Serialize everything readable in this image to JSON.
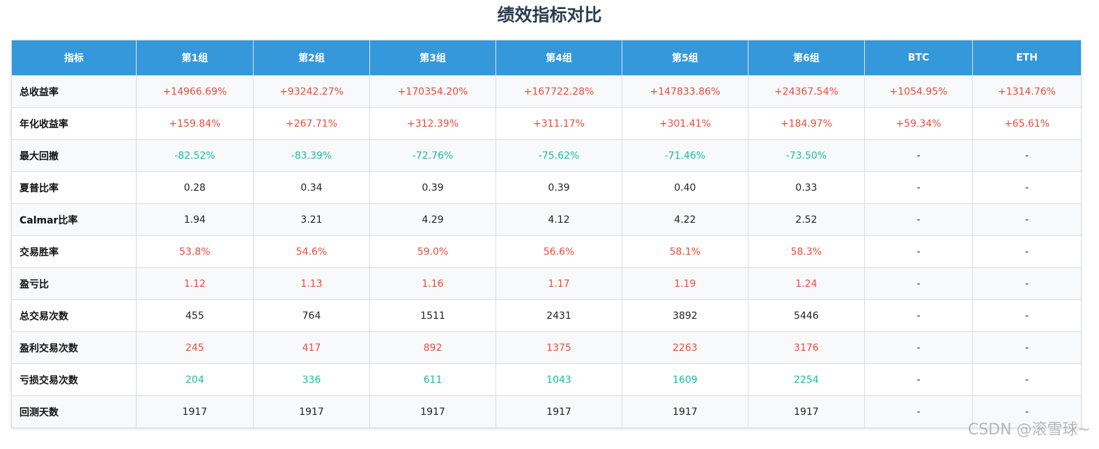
{
  "title": "绩效指标对比",
  "watermark": "CSDN @滚雪球~",
  "colors": {
    "header_bg": "#3498db",
    "positive": "#e74c3c",
    "negative": "#1abc9c",
    "neutral": "#222222"
  },
  "table": {
    "headers": [
      "指标",
      "第1组",
      "第2组",
      "第3组",
      "第4组",
      "第5组",
      "第6组",
      "BTC",
      "ETH"
    ],
    "rows": [
      {
        "metric": "总收益率",
        "style": "pos",
        "values": [
          "+14966.69%",
          "+93242.27%",
          "+170354.20%",
          "+167722.28%",
          "+147833.86%",
          "+24367.54%",
          "+1054.95%",
          "+1314.76%"
        ]
      },
      {
        "metric": "年化收益率",
        "style": "pos",
        "values": [
          "+159.84%",
          "+267.71%",
          "+312.39%",
          "+311.17%",
          "+301.41%",
          "+184.97%",
          "+59.34%",
          "+65.61%"
        ]
      },
      {
        "metric": "最大回撤",
        "style": "neg",
        "values": [
          "-82.52%",
          "-83.39%",
          "-72.76%",
          "-75.62%",
          "-71.46%",
          "-73.50%",
          "-",
          "-"
        ]
      },
      {
        "metric": "夏普比率",
        "style": "neu",
        "values": [
          "0.28",
          "0.34",
          "0.39",
          "0.39",
          "0.40",
          "0.33",
          "-",
          "-"
        ]
      },
      {
        "metric": "Calmar比率",
        "style": "neu",
        "values": [
          "1.94",
          "3.21",
          "4.29",
          "4.12",
          "4.22",
          "2.52",
          "-",
          "-"
        ]
      },
      {
        "metric": "交易胜率",
        "style": "pos",
        "values": [
          "53.8%",
          "54.6%",
          "59.0%",
          "56.6%",
          "58.1%",
          "58.3%",
          "-",
          "-"
        ]
      },
      {
        "metric": "盈亏比",
        "style": "pos",
        "values": [
          "1.12",
          "1.13",
          "1.16",
          "1.17",
          "1.19",
          "1.24",
          "-",
          "-"
        ]
      },
      {
        "metric": "总交易次数",
        "style": "neu",
        "values": [
          "455",
          "764",
          "1511",
          "2431",
          "3892",
          "5446",
          "-",
          "-"
        ]
      },
      {
        "metric": "盈利交易次数",
        "style": "pos",
        "values": [
          "245",
          "417",
          "892",
          "1375",
          "2263",
          "3176",
          "-",
          "-"
        ]
      },
      {
        "metric": "亏损交易次数",
        "style": "neg",
        "values": [
          "204",
          "336",
          "611",
          "1043",
          "1609",
          "2254",
          "-",
          "-"
        ]
      },
      {
        "metric": "回测天数",
        "style": "neu",
        "values": [
          "1917",
          "1917",
          "1917",
          "1917",
          "1917",
          "1917",
          "-",
          "-"
        ]
      }
    ]
  }
}
